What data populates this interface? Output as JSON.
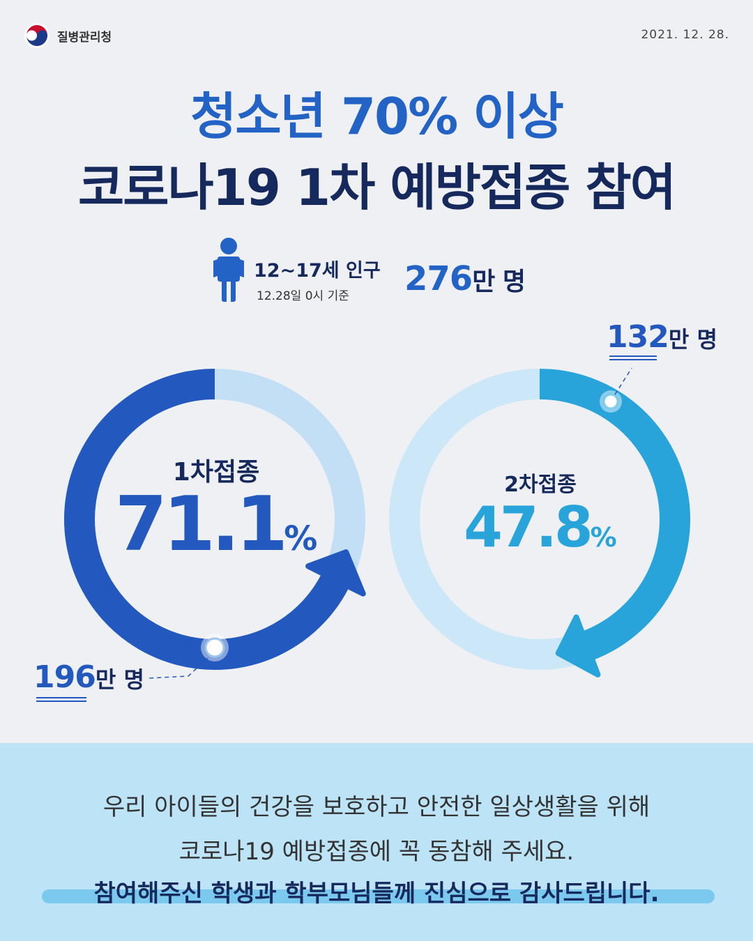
{
  "header": {
    "agency": "질병관리청",
    "date": "2021. 12. 28."
  },
  "title": {
    "line1": "청소년 70% 이상",
    "line2": "코로나19 1차 예방접종 참여"
  },
  "population": {
    "label": "12~17세 인구",
    "note": "12.28일 0시 기준",
    "value": "276",
    "unit": "만 명",
    "icon": "person-icon"
  },
  "doses": [
    {
      "label": "1차접종",
      "value": "71.1",
      "unit": "%",
      "percent": 71.1,
      "count": "196",
      "count_unit": "만 명",
      "color": "#2359be",
      "track": "#c2dff5"
    },
    {
      "label": "2차접종",
      "value": "47.8",
      "unit": "%",
      "percent": 47.8,
      "count": "132",
      "count_unit": "만 명",
      "color": "#29a4db",
      "track": "#cce7f7"
    }
  ],
  "message": {
    "line1": "우리 아이들의 건강을 보호하고 안전한 일상생활을 위해",
    "line2": "코로나19 예방접종에 꼭 동참해 주세요.",
    "line3": "참여해주신 학생과 학부모님들께 진심으로 감사드립니다."
  },
  "colors": {
    "accent": "#2363c6",
    "navy": "#16295c",
    "sky": "#29a4db",
    "bottom_band": "#bde3f6"
  }
}
